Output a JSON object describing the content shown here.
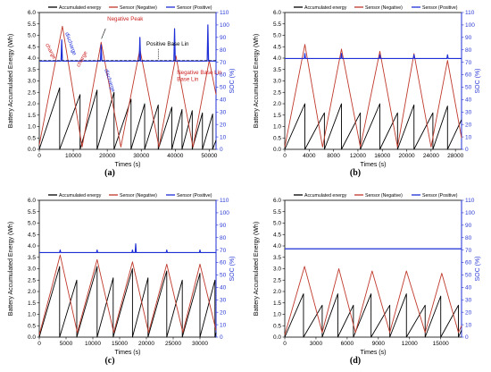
{
  "colors": {
    "accumulated": "#000000",
    "negative": "#c0392b",
    "positive": "#1f2fd6",
    "annotation": "#cc2222"
  },
  "chart_data": [
    {
      "type": "line",
      "panel_label": "(a)",
      "xlabel": "Times (s)",
      "ylabel_left": "Battery Accumulated Energy (Wh)",
      "ylabel_right": "SOC (%)",
      "xlim": [
        0,
        52000
      ],
      "ylim_left": [
        0,
        6.0
      ],
      "ylim_right": [
        0,
        110
      ],
      "x_ticks": [
        0,
        10000,
        20000,
        30000,
        40000,
        50000
      ],
      "y_ticks_left": [
        0,
        0.5,
        1.0,
        1.5,
        2.0,
        2.5,
        3.0,
        3.5,
        4.0,
        4.5,
        5.0,
        5.5,
        6.0
      ],
      "y_ticks_right": [
        0,
        10,
        20,
        30,
        40,
        50,
        60,
        70,
        80,
        90,
        100,
        110
      ],
      "legend": [
        "Accumulated energy",
        "Sensor (Negative)",
        "Sensor (Positive)"
      ],
      "legend_position": "top",
      "annotations": [
        "Negative Peak",
        "Positive Base Lin",
        "Negative Base Lin",
        "charge",
        "discharge",
        "charge",
        "discharge"
      ],
      "series": [
        {
          "name": "Accumulated energy",
          "x": [
            0,
            6000,
            6000,
            12000,
            12000,
            17000,
            17000,
            22000,
            22000,
            27000,
            27000,
            31000,
            31000,
            35000,
            35000,
            39000,
            39000,
            42000,
            42000,
            45000,
            45000,
            48000,
            48000,
            51000,
            51000,
            52000
          ],
          "y": [
            0,
            2.7,
            0,
            2.4,
            0,
            2.6,
            0,
            2.5,
            0,
            2.2,
            0,
            2.0,
            0,
            1.95,
            0,
            1.85,
            0,
            1.75,
            0,
            1.7,
            0,
            1.6,
            0,
            1.55,
            0,
            0.4
          ]
        },
        {
          "name": "Sensor (Negative)",
          "x": [
            0,
            6800,
            12600,
            18200,
            24000,
            29600,
            35200,
            40200,
            45200,
            50000,
            52000
          ],
          "y": [
            0.2,
            5.4,
            0.1,
            4.7,
            0.1,
            4.4,
            0.1,
            4.1,
            0.1,
            3.9,
            2.4
          ]
        },
        {
          "name": "Sensor (Positive)",
          "x": [
            0,
            6400,
            6600,
            6800,
            7000,
            18000,
            18200,
            18400,
            29400,
            29600,
            29800,
            39600,
            39800,
            40000,
            49400,
            49600,
            49800,
            52000
          ],
          "y": [
            71,
            71,
            88,
            71,
            71,
            71,
            84,
            71,
            71,
            90,
            71,
            71,
            97,
            71,
            71,
            100,
            71,
            71
          ]
        }
      ]
    },
    {
      "type": "line",
      "panel_label": "(b)",
      "xlabel": "Times (s)",
      "ylabel_left": "Battery Accumulated Energy (Wh)",
      "ylabel_right": "SOC (%)",
      "xlim": [
        0,
        29000
      ],
      "ylim_left": [
        0,
        6.0
      ],
      "ylim_right": [
        0,
        110
      ],
      "x_ticks": [
        0,
        4000,
        8000,
        12000,
        16000,
        20000,
        24000,
        28000
      ],
      "y_ticks_left": [
        0,
        0.5,
        1.0,
        1.5,
        2.0,
        2.5,
        3.0,
        3.5,
        4.0,
        4.5,
        5.0,
        5.5,
        6.0
      ],
      "y_ticks_right": [
        0,
        10,
        20,
        30,
        40,
        50,
        60,
        70,
        80,
        90,
        100,
        110
      ],
      "legend": [
        "Accumulated energy",
        "Sensor (Negative)",
        "Sensor (Positive)"
      ],
      "legend_position": "top",
      "series": [
        {
          "name": "Accumulated energy",
          "x": [
            0,
            3300,
            3300,
            6500,
            6500,
            9300,
            9300,
            12400,
            12400,
            15600,
            15600,
            18500,
            18500,
            21200,
            21200,
            24300,
            24300,
            26700,
            26700,
            29000
          ],
          "y": [
            0,
            2.0,
            0,
            1.6,
            0,
            2.0,
            0,
            1.6,
            0,
            2.0,
            0,
            1.6,
            0,
            1.95,
            0,
            1.6,
            0,
            1.9,
            0,
            1.3
          ]
        },
        {
          "name": "Sensor (Negative)",
          "x": [
            0,
            3300,
            6200,
            9300,
            12400,
            15600,
            18500,
            21200,
            24000,
            26700,
            29000
          ],
          "y": [
            0.1,
            4.6,
            0.1,
            4.4,
            0.1,
            4.3,
            0.1,
            4.2,
            0.1,
            3.9,
            0.5
          ]
        },
        {
          "name": "Sensor (Positive)",
          "x": [
            0,
            3200,
            3300,
            3400,
            9200,
            9300,
            9400,
            15500,
            15600,
            15700,
            21100,
            21200,
            21300,
            26600,
            26700,
            26800,
            29000
          ],
          "y": [
            73,
            73,
            77,
            73,
            73,
            77,
            73,
            73,
            76,
            73,
            73,
            76,
            73,
            73,
            76,
            73,
            73
          ]
        }
      ]
    },
    {
      "type": "line",
      "panel_label": "(c)",
      "xlabel": "Times (s)",
      "ylabel_left": "Battery Accumulated Energy (Wh)",
      "ylabel_right": "SOC (%)",
      "xlim": [
        0,
        33000
      ],
      "ylim_left": [
        0,
        6.0
      ],
      "ylim_right": [
        0,
        110
      ],
      "x_ticks": [
        0,
        5000,
        10000,
        15000,
        20000,
        25000,
        30000
      ],
      "y_ticks_left": [
        0,
        0.5,
        1.0,
        1.5,
        2.0,
        2.5,
        3.0,
        3.5,
        4.0,
        4.5,
        5.0,
        5.5,
        6.0
      ],
      "y_ticks_right": [
        0,
        10,
        20,
        30,
        40,
        50,
        60,
        70,
        80,
        90,
        100,
        110
      ],
      "legend": [
        "Accumulated energy",
        "Sensor (Negative)",
        "Sensor (Positive)"
      ],
      "legend_position": "top",
      "series": [
        {
          "name": "Accumulated energy",
          "x": [
            0,
            3800,
            3800,
            7000,
            7000,
            10800,
            10800,
            13800,
            13800,
            17400,
            17400,
            20300,
            20300,
            23800,
            23800,
            26700,
            26700,
            30000,
            30000,
            32800,
            32800,
            33000
          ],
          "y": [
            0,
            3.1,
            0,
            2.5,
            0,
            3.1,
            0,
            2.6,
            0,
            3.0,
            0,
            2.6,
            0,
            2.9,
            0,
            2.5,
            0,
            2.8,
            0,
            2.5,
            0,
            0.2
          ]
        },
        {
          "name": "Sensor (Negative)",
          "x": [
            0,
            3900,
            7100,
            10800,
            13900,
            17400,
            20400,
            23800,
            26800,
            30000,
            33000
          ],
          "y": [
            0.1,
            3.6,
            0.2,
            3.4,
            0.2,
            3.3,
            0.2,
            3.2,
            0.2,
            3.2,
            0.3
          ]
        },
        {
          "name": "Sensor (Positive)",
          "x": [
            0,
            3800,
            3900,
            4000,
            10700,
            10800,
            10900,
            17300,
            17400,
            17500,
            17900,
            18000,
            18100,
            23700,
            23800,
            23900,
            29900,
            30000,
            30100,
            33000
          ],
          "y": [
            68,
            68,
            70,
            68,
            68,
            70,
            68,
            68,
            70,
            68,
            68,
            75,
            68,
            68,
            70,
            68,
            68,
            70,
            68,
            68
          ]
        }
      ]
    },
    {
      "type": "line",
      "panel_label": "(d)",
      "xlabel": "Times (s)",
      "ylabel_left": "Battery Accumulated Energy (Wh)",
      "ylabel_right": "SOC (%)",
      "xlim": [
        0,
        17000
      ],
      "ylim_left": [
        0,
        6.0
      ],
      "ylim_right": [
        0,
        110
      ],
      "x_ticks": [
        0,
        3000,
        6000,
        9000,
        12000,
        15000
      ],
      "y_ticks_left": [
        0,
        0.5,
        1.0,
        1.5,
        2.0,
        2.5,
        3.0,
        3.5,
        4.0,
        4.5,
        5.0,
        5.5,
        6.0
      ],
      "y_ticks_right": [
        0,
        10,
        20,
        30,
        40,
        50,
        60,
        70,
        80,
        90,
        100,
        110
      ],
      "legend": [
        "Accumulated energy",
        "Sensor (Negative)",
        "Sensor (Positive)"
      ],
      "legend_position": "top",
      "series": [
        {
          "name": "Accumulated energy",
          "x": [
            0,
            1800,
            1800,
            3600,
            3600,
            5100,
            5100,
            6600,
            6600,
            8300,
            8300,
            10100,
            10100,
            11700,
            11700,
            13500,
            13500,
            15000,
            15000,
            16700,
            16700,
            17000
          ],
          "y": [
            0,
            1.9,
            0,
            1.4,
            0,
            1.9,
            0,
            1.4,
            0,
            1.9,
            0,
            1.4,
            0,
            1.9,
            0,
            1.4,
            0,
            1.8,
            0,
            1.4,
            0,
            0.3
          ]
        },
        {
          "name": "Sensor (Negative)",
          "x": [
            0,
            1900,
            3600,
            5200,
            6800,
            8400,
            10100,
            11700,
            13500,
            15100,
            16700,
            17000
          ],
          "y": [
            0.1,
            3.1,
            0.2,
            3.0,
            0.2,
            2.9,
            0.2,
            2.9,
            0.2,
            2.8,
            0.2,
            0.5
          ]
        },
        {
          "name": "Sensor (Positive)",
          "x": [
            0,
            17000
          ],
          "y": [
            71,
            71
          ]
        }
      ]
    }
  ]
}
